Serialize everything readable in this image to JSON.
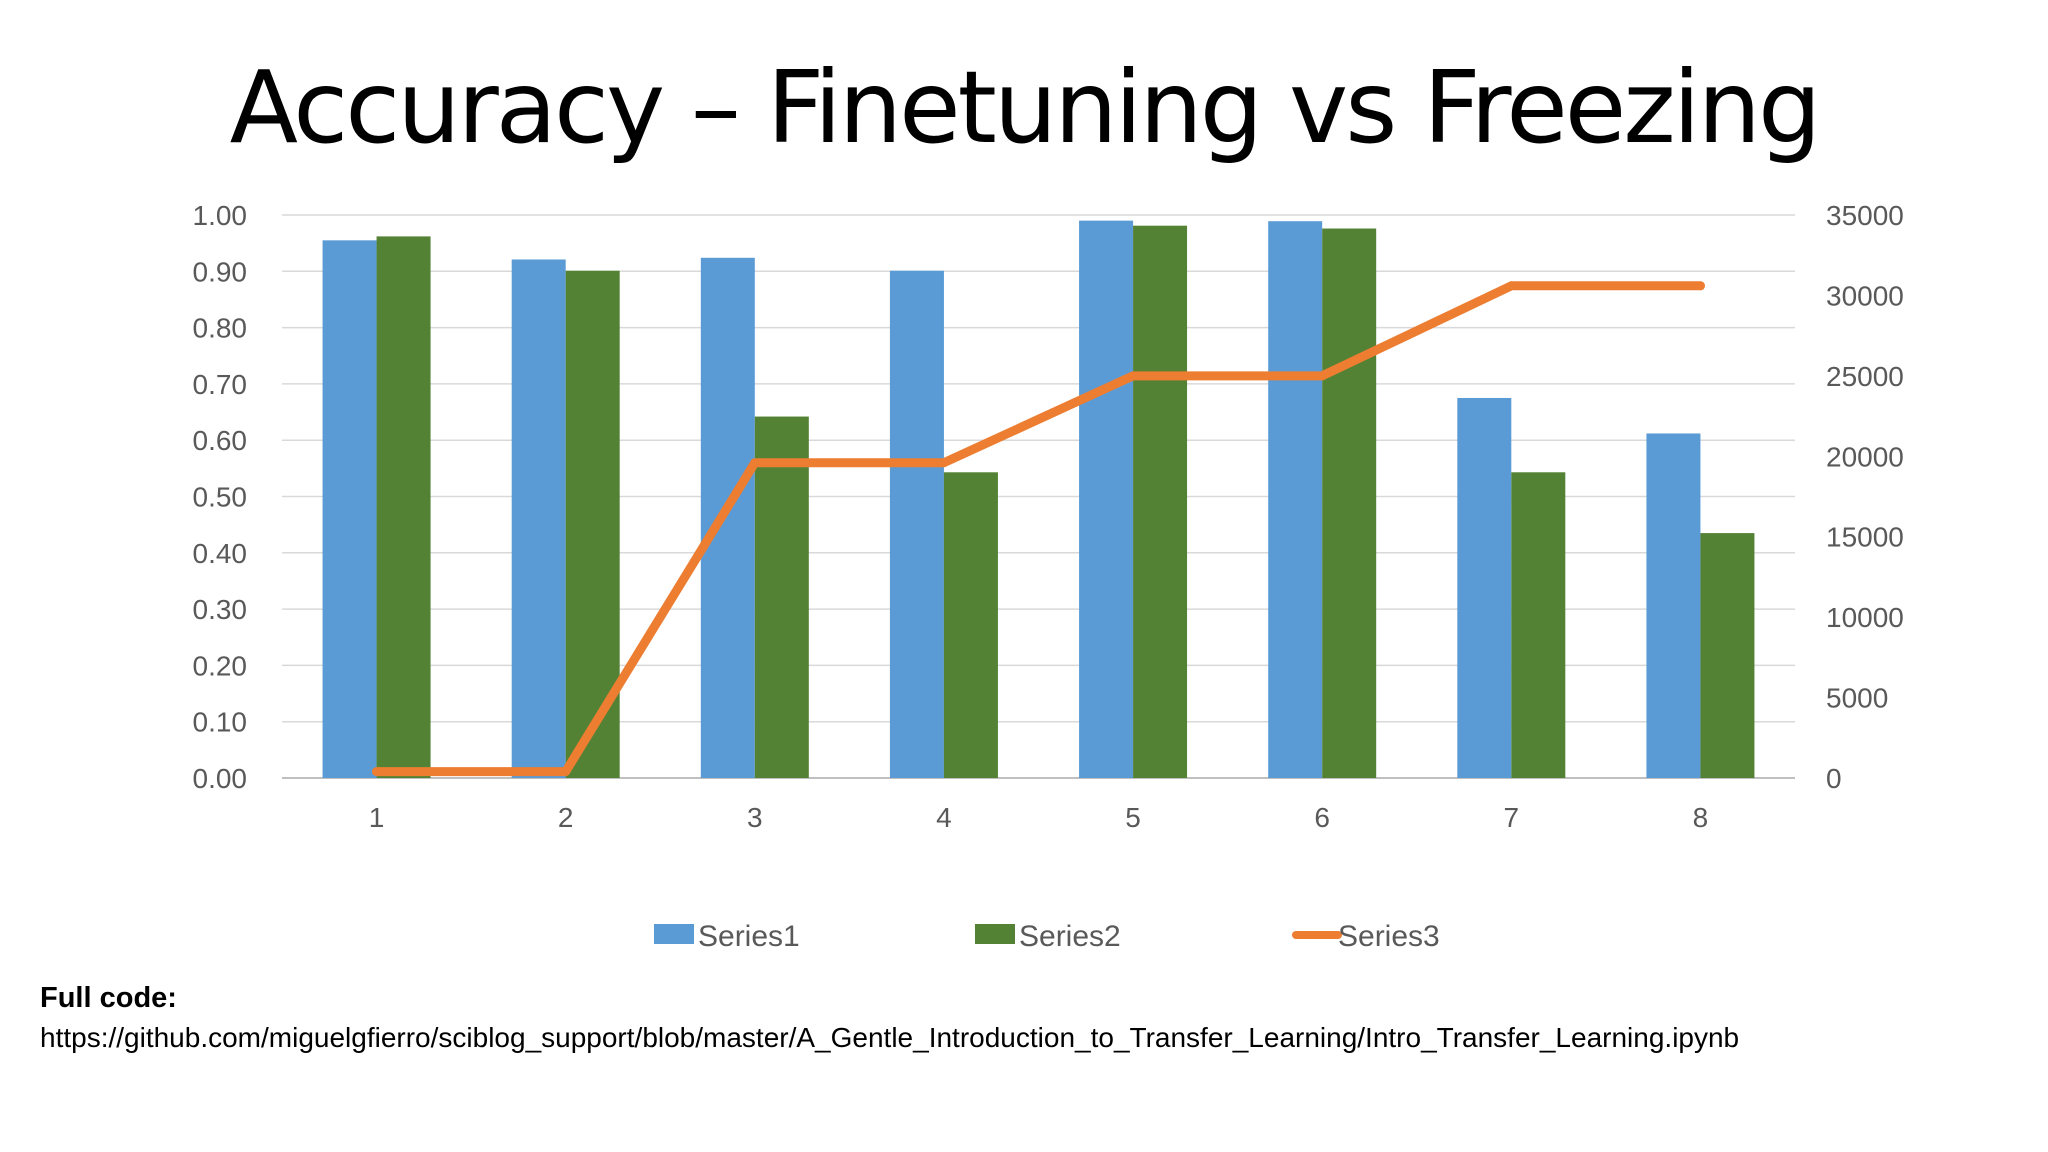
{
  "slide": {
    "title": "Accuracy – Finetuning vs Freezing",
    "footer": {
      "label": "Full code:",
      "url": "https://github.com/miguelgfierro/sciblog_support/blob/master/A_Gentle_Introduction_to_Transfer_Learning/Intro_Transfer_Learning.ipynb"
    }
  },
  "chart_data": {
    "type": "bar",
    "title": "",
    "categories": [
      "1",
      "2",
      "3",
      "4",
      "5",
      "6",
      "7",
      "8"
    ],
    "series": [
      {
        "name": "Series1",
        "kind": "bar",
        "axis": "left",
        "color": "#5B9BD5",
        "values": [
          0.955,
          0.921,
          0.924,
          0.901,
          0.99,
          0.989,
          0.675,
          0.612
        ]
      },
      {
        "name": "Series2",
        "kind": "bar",
        "axis": "left",
        "color": "#548235",
        "values": [
          0.962,
          0.901,
          0.642,
          0.543,
          0.981,
          0.976,
          0.543,
          0.435
        ]
      },
      {
        "name": "Series3",
        "kind": "line",
        "axis": "right",
        "color": "#ED7D31",
        "values": [
          400,
          400,
          19600,
          19600,
          25000,
          25000,
          30600,
          30600
        ]
      }
    ],
    "y_left": {
      "ylim": [
        0,
        1
      ],
      "ticks": [
        "0.00",
        "0.10",
        "0.20",
        "0.30",
        "0.40",
        "0.50",
        "0.60",
        "0.70",
        "0.80",
        "0.90",
        "1.00"
      ]
    },
    "y_right": {
      "ylim": [
        0,
        35000
      ],
      "ticks": [
        "0",
        "5000",
        "10000",
        "15000",
        "20000",
        "25000",
        "30000",
        "35000"
      ]
    },
    "xlabel": "",
    "ylabel": "",
    "grid": true,
    "legend_position": "bottom"
  }
}
